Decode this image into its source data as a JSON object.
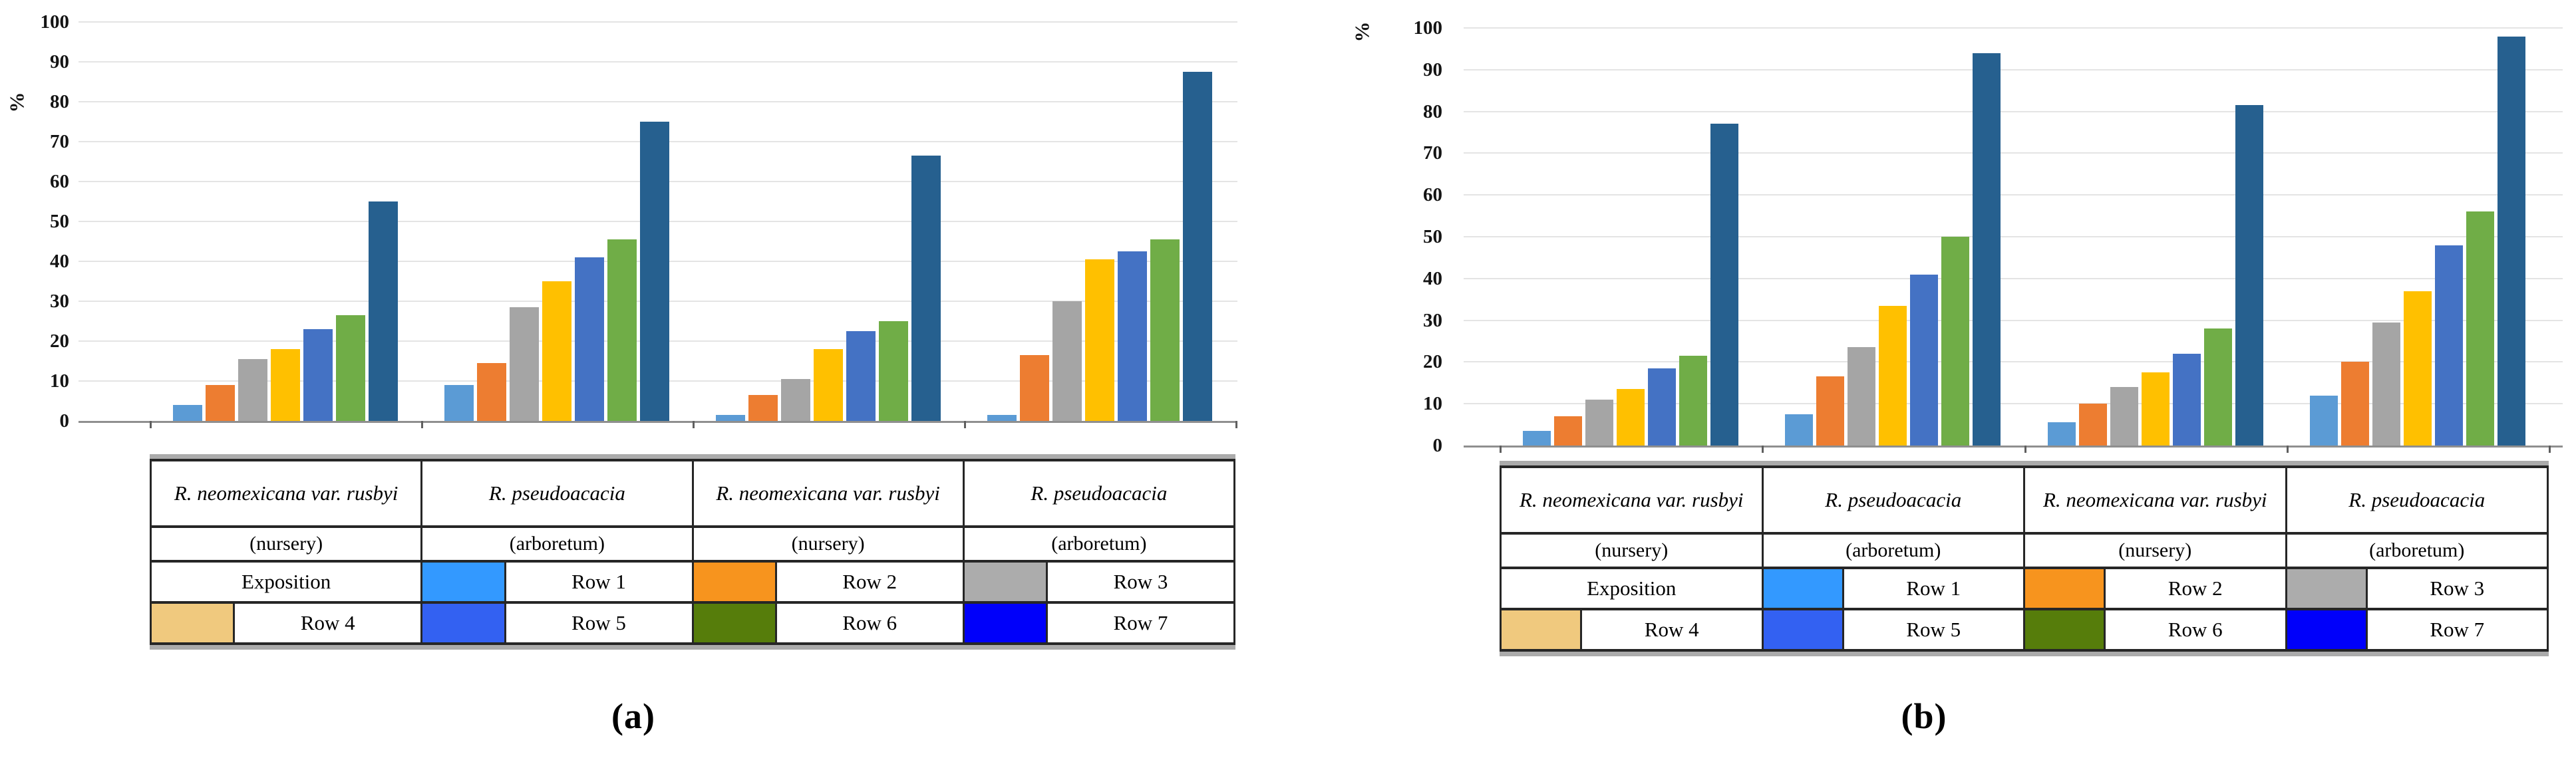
{
  "figure": {
    "background": "#ffffff"
  },
  "colors": {
    "bar_series": [
      "#5B9BD5",
      "#ED7D31",
      "#A5A5A5",
      "#FFC000",
      "#4472C4",
      "#70AD47",
      "#26608F"
    ],
    "legend_swatches": [
      "#3399FF",
      "#F7941E",
      "#ACACAC",
      "#F0C97E",
      "#3361F2",
      "#567D0B",
      "#0000FA"
    ],
    "gridline": "#E4E4E4",
    "axis_text": "#141414"
  },
  "legend": {
    "exposition_label": "Exposition",
    "row_labels": [
      "Row 1",
      "Row 2",
      "Row 3",
      "Row 4",
      "Row 5",
      "Row 6",
      "Row 7"
    ]
  },
  "legend_table": {
    "columns": [
      {
        "species": "R. neomexicana var. rusbyi",
        "site": "(nursery)"
      },
      {
        "species": "R. pseudoacacia",
        "site": "(arboretum)"
      },
      {
        "species": "R. neomexicana var. rusbyi",
        "site": "(nursery)"
      },
      {
        "species": "R. pseudoacacia",
        "site": "(arboretum)"
      }
    ]
  },
  "chart_data": [
    {
      "id": "a",
      "type": "bar",
      "caption": "(a)",
      "ylabel": "%",
      "ylim": [
        0,
        100
      ],
      "yticks": [
        0,
        10,
        20,
        30,
        40,
        50,
        60,
        70,
        80,
        90,
        100
      ],
      "grid": true,
      "legend_position": "table-below",
      "categories": [
        "R. neomexicana var. rusbyi (nursery)",
        "R. pseudoacacia (arboretum)",
        "R. neomexicana var. rusbyi (nursery)",
        "R. pseudoacacia (arboretum)"
      ],
      "series": [
        {
          "name": "Row 1",
          "values": [
            4,
            9,
            1.5,
            1.5
          ]
        },
        {
          "name": "Row 2",
          "values": [
            9,
            14.5,
            6.5,
            16.5
          ]
        },
        {
          "name": "Row 3",
          "values": [
            15.5,
            28.5,
            10.5,
            30
          ]
        },
        {
          "name": "Row 4",
          "values": [
            18,
            35,
            18,
            40.5
          ]
        },
        {
          "name": "Row 5",
          "values": [
            23,
            41,
            22.5,
            42.5
          ]
        },
        {
          "name": "Row 6",
          "values": [
            26.5,
            45.5,
            25,
            45.5
          ]
        },
        {
          "name": "Row 7",
          "values": [
            55,
            75,
            66.5,
            87.5
          ]
        }
      ]
    },
    {
      "id": "b",
      "type": "bar",
      "caption": "(b)",
      "ylabel": "%",
      "ylim": [
        0,
        100
      ],
      "yticks": [
        0,
        10,
        20,
        30,
        40,
        50,
        60,
        70,
        80,
        90,
        100
      ],
      "grid": true,
      "legend_position": "table-below",
      "categories": [
        "R. neomexicana var. rusbyi (nursery)",
        "R. pseudoacacia (arboretum)",
        "R. neomexicana var. rusbyi (nursery)",
        "R. pseudoacacia (arboretum)"
      ],
      "series": [
        {
          "name": "Row 1",
          "values": [
            3.5,
            7.5,
            5.5,
            12
          ]
        },
        {
          "name": "Row 2",
          "values": [
            7,
            16.5,
            10,
            20
          ]
        },
        {
          "name": "Row 3",
          "values": [
            11,
            23.5,
            14,
            29.5
          ]
        },
        {
          "name": "Row 4",
          "values": [
            13.5,
            33.5,
            17.5,
            37
          ]
        },
        {
          "name": "Row 5",
          "values": [
            18.5,
            41,
            22,
            48
          ]
        },
        {
          "name": "Row 6",
          "values": [
            21.5,
            50,
            28,
            56
          ]
        },
        {
          "name": "Row 7",
          "values": [
            77,
            94,
            81.5,
            98
          ]
        }
      ]
    }
  ]
}
